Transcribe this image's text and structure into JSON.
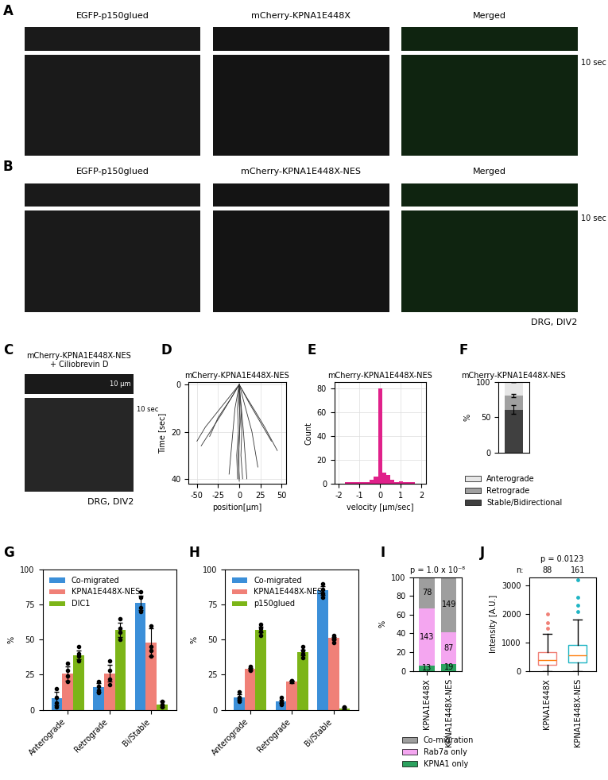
{
  "figure": {
    "image_panels": [
      {
        "label": "A",
        "channels": [
          "EGFP-p150glued",
          "mCherry-KPNA1E448X",
          "Merged"
        ],
        "time_scale": "10 sec"
      },
      {
        "label": "B",
        "channels": [
          "EGFP-p150glued",
          "mCherry-KPNA1E448X-NES",
          "Merged"
        ],
        "time_scale": "10 sec",
        "note": "DRG, DIV2"
      },
      {
        "label": "C",
        "channels": [
          "mCherry-KPNA1E448X-NES\n+ Ciliobrevin D"
        ],
        "space_scale": "10 μm",
        "time_scale": "10 sec",
        "note": "DRG, DIV2"
      }
    ]
  },
  "chart_data": [
    {
      "panel": "D",
      "type": "line",
      "title": "mCherry-KPNA1E448X-NES",
      "x_label": "position[μm]",
      "y_label": "Time [sec]",
      "color": "#333333",
      "grid": true,
      "xlim": [
        -60,
        55
      ],
      "xticks": [
        -50,
        -25,
        0,
        25,
        50
      ],
      "ylim": [
        42,
        -1
      ],
      "yticks": [
        0,
        20,
        40
      ],
      "series": [
        {
          "x": [
            0,
            0,
            1,
            0,
            -1,
            0
          ],
          "y": [
            0,
            8,
            16,
            24,
            32,
            40
          ]
        },
        {
          "x": [
            0,
            -2,
            -1,
            -3,
            -2
          ],
          "y": [
            0,
            10,
            20,
            30,
            40
          ]
        },
        {
          "x": [
            0,
            2,
            3,
            2,
            4
          ],
          "y": [
            0,
            10,
            20,
            30,
            40
          ]
        },
        {
          "x": [
            0,
            -10,
            -25,
            -35
          ],
          "y": [
            0,
            6,
            14,
            22
          ]
        },
        {
          "x": [
            0,
            12,
            25,
            38
          ],
          "y": [
            0,
            8,
            16,
            24
          ]
        },
        {
          "x": [
            0,
            -20,
            -45
          ],
          "y": [
            0,
            12,
            26
          ]
        },
        {
          "x": [
            0,
            8,
            20,
            30,
            45
          ],
          "y": [
            0,
            5,
            12,
            18,
            28
          ]
        },
        {
          "x": [
            0,
            -5,
            -12
          ],
          "y": [
            0,
            10,
            38
          ]
        },
        {
          "x": [
            0,
            5,
            9
          ],
          "y": [
            0,
            20,
            40
          ]
        },
        {
          "x": [
            0,
            -40,
            -50
          ],
          "y": [
            0,
            18,
            24
          ]
        },
        {
          "x": [
            0,
            1,
            -1,
            0
          ],
          "y": [
            0,
            15,
            30,
            41
          ]
        },
        {
          "x": [
            0,
            15,
            22
          ],
          "y": [
            0,
            20,
            35
          ]
        }
      ]
    },
    {
      "panel": "E",
      "type": "histogram",
      "title": "mCherry-KPNA1E448X-NES",
      "x_label": "velocity [μm/sec]",
      "y_label": "Count",
      "color": "#e0218a",
      "grid": true,
      "bins": [
        -2.1,
        -1.9,
        -1.7,
        -1.5,
        -1.3,
        -1.1,
        -0.9,
        -0.7,
        -0.5,
        -0.3,
        -0.1,
        0.1,
        0.3,
        0.5,
        0.7,
        0.9,
        1.1,
        1.3,
        1.5,
        1.7,
        1.9,
        2.1
      ],
      "counts": [
        0,
        0,
        1,
        1,
        1,
        1,
        1,
        1,
        3,
        6,
        80,
        9,
        7,
        3,
        1,
        2,
        1,
        1,
        1,
        0,
        0
      ],
      "xlim": [
        -2.2,
        2.2
      ],
      "xticks": [
        -2,
        -1,
        0,
        1,
        2
      ],
      "ylim": [
        0,
        85
      ],
      "yticks": [
        0,
        20,
        40,
        60,
        80
      ]
    },
    {
      "panel": "F",
      "type": "bar",
      "stacked": true,
      "title": "mCherry-KPNA1E448X-NES",
      "y_label": "%",
      "categories": [
        null
      ],
      "tick_labels": "y",
      "legend": "upper center",
      "ylim": [
        0,
        100
      ],
      "yticks": [
        0,
        50,
        100
      ],
      "series": [
        {
          "name": "Stable/Bidirectional",
          "color": "#404040",
          "values": [
            61
          ],
          "errors": [
            6
          ]
        },
        {
          "name": "Retrograde",
          "color": "#a0a0a0",
          "values": [
            20
          ],
          "errors": [
            2
          ]
        },
        {
          "name": "Anterograde",
          "color": "#e6e6e6",
          "values": [
            19
          ],
          "errors": [
            0
          ]
        }
      ]
    },
    {
      "panel": "G",
      "type": "bar",
      "y_label": "%",
      "legend": "upper left",
      "categories": [
        "Anterograde",
        "Retrograde",
        "Bi/Stable"
      ],
      "ylim": [
        0,
        100
      ],
      "yticks": [
        0,
        25,
        50,
        75,
        100
      ],
      "series": [
        {
          "name": "Co-migrated",
          "color": "#3b8fd9",
          "values": [
            8,
            16,
            76
          ],
          "errors": [
            5,
            3,
            5
          ],
          "points": [
            [
              2,
              5,
              9,
              15
            ],
            [
              12,
              14,
              17,
              20
            ],
            [
              70,
              73,
              80,
              84
            ]
          ]
        },
        {
          "name": "KPNA1E448X-NES",
          "color": "#f08077",
          "values": [
            26,
            26,
            48
          ],
          "errors": [
            5,
            6,
            10
          ],
          "points": [
            [
              20,
              24,
              28,
              33
            ],
            [
              18,
              22,
              28,
              35
            ],
            [
              38,
              42,
              45,
              60
            ]
          ]
        },
        {
          "name": "DIC1",
          "color": "#7cb518",
          "values": [
            39,
            57,
            4
          ],
          "errors": [
            3,
            5,
            2
          ],
          "points": [
            [
              35,
              38,
              40,
              45
            ],
            [
              50,
              55,
              58,
              65
            ],
            [
              2,
              3,
              4,
              6
            ]
          ]
        }
      ]
    },
    {
      "panel": "H",
      "type": "bar",
      "y_label": "%",
      "legend": "upper left",
      "categories": [
        "Anterograde",
        "Retrograde",
        "Bi/Stable"
      ],
      "ylim": [
        0,
        100
      ],
      "yticks": [
        0,
        25,
        50,
        75,
        100
      ],
      "series": [
        {
          "name": "Co-migrated",
          "color": "#3b8fd9",
          "values": [
            9,
            6,
            85
          ],
          "errors": [
            2,
            1,
            3
          ],
          "points": [
            [
              6,
              8,
              9,
              13
            ],
            [
              4,
              5,
              6,
              9
            ],
            [
              80,
              83,
              86,
              90
            ]
          ]
        },
        {
          "name": "KPNA1E448X-NES",
          "color": "#f08077",
          "values": [
            29,
            20,
            51
          ],
          "errors": [
            1,
            1,
            1
          ],
          "points": [
            [
              28,
              29,
              30,
              31
            ],
            [
              20,
              20,
              21,
              21
            ],
            [
              48,
              50,
              51,
              53
            ]
          ]
        },
        {
          "name": "p150glued",
          "color": "#7cb518",
          "values": [
            57,
            41,
            1
          ],
          "errors": [
            2,
            2,
            1
          ],
          "points": [
            [
              53,
              56,
              58,
              61
            ],
            [
              37,
              40,
              42,
              45
            ],
            [
              0,
              1,
              1,
              2
            ]
          ]
        }
      ]
    },
    {
      "panel": "I",
      "type": "bar",
      "stacked": true,
      "title": "p = 1.0 x 10⁻⁸",
      "y_label": "%",
      "legend": "upper center",
      "categories": [
        "KPNA1E448X",
        "KPNA1E448X-NES"
      ],
      "ylim": [
        0,
        100
      ],
      "yticks": [
        0,
        20,
        40,
        60,
        80,
        100
      ],
      "series": [
        {
          "name": "KPNA1 only",
          "color": "#2ca25f",
          "values": [
            5.56,
            7.45
          ],
          "n": [
            13,
            19
          ]
        },
        {
          "name": "Rab7a only",
          "color": "#f4a6f0",
          "values": [
            61.11,
            34.12
          ],
          "n": [
            143,
            87
          ]
        },
        {
          "name": "Co-migration",
          "color": "#9e9e9e",
          "values": [
            33.33,
            58.43
          ],
          "n": [
            78,
            149
          ]
        }
      ]
    },
    {
      "panel": "J",
      "type": "box",
      "title": "p = 0.0123",
      "y_label": "Intensity [A.U.]",
      "categories": [
        "KPNA1E448X",
        "KPNA1E448X-NES"
      ],
      "n_label": "n:",
      "n": [
        88,
        161
      ],
      "colors": [
        "#f08077",
        "#1fb5c4"
      ],
      "ylim": [
        0,
        3300
      ],
      "yticks": [
        0,
        1000,
        2000,
        3000
      ],
      "boxes": [
        {
          "whislo": 0,
          "q1": 200,
          "med": 380,
          "q3": 650,
          "whishi": 1300,
          "outliers": [
            1500,
            1700,
            2000
          ]
        },
        {
          "whislo": 0,
          "q1": 300,
          "med": 560,
          "q3": 900,
          "whishi": 1800,
          "outliers": [
            2100,
            2300,
            2600,
            3200
          ]
        }
      ]
    }
  ]
}
